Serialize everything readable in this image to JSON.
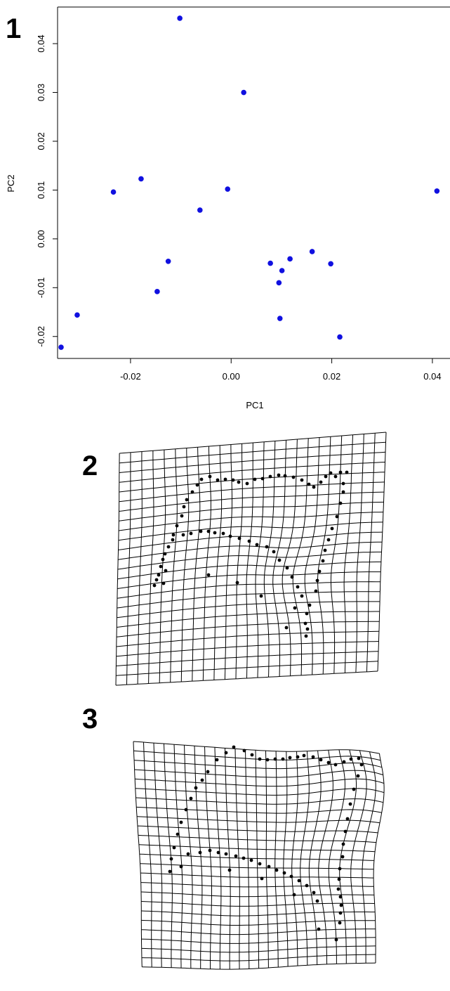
{
  "panels": [
    {
      "id": "1",
      "label": "1"
    },
    {
      "id": "2",
      "label": "2"
    },
    {
      "id": "3",
      "label": "3"
    }
  ],
  "chart_data": [
    {
      "type": "scatter",
      "panel": "1",
      "title": "",
      "xlabel": "PC1",
      "ylabel": "PC2",
      "xlim": [
        -0.0345,
        0.0435
      ],
      "ylim": [
        -0.0245,
        0.0475
      ],
      "xticks": [
        -0.02,
        0.0,
        0.02,
        0.04
      ],
      "xtick_labels": [
        "-0.02",
        "0.00",
        "0.02",
        "0.04"
      ],
      "yticks": [
        -0.02,
        -0.01,
        0.0,
        0.01,
        0.02,
        0.03,
        0.04
      ],
      "ytick_labels": [
        "-0.02",
        "-0.01",
        "0.00",
        "0.01",
        "0.02",
        "0.03",
        "0.04"
      ],
      "grid": false,
      "point_color": "#1010e0",
      "series": [
        {
          "x": [
            -0.0338,
            -0.0306,
            -0.0234,
            -0.0179,
            -0.0147,
            -0.0125,
            -0.0102,
            -0.0062,
            -0.0007,
            0.0025,
            0.0078,
            0.0095,
            0.0097,
            0.0101,
            0.0117,
            0.0161,
            0.0198,
            0.0216,
            0.0409
          ],
          "y": [
            -0.0222,
            -0.0156,
            0.0096,
            0.0123,
            -0.0108,
            -0.0046,
            0.0452,
            0.0059,
            0.0102,
            0.03,
            -0.005,
            -0.009,
            -0.0163,
            -0.0065,
            -0.0041,
            -0.0026,
            -0.0051,
            -0.0201,
            0.0098
          ]
        }
      ]
    },
    {
      "type": "deformation-grid",
      "panel": "2",
      "grid_color": "#000000",
      "landmark_color": "#000000"
    },
    {
      "type": "deformation-grid",
      "panel": "3",
      "grid_color": "#000000",
      "landmark_color": "#000000"
    }
  ]
}
